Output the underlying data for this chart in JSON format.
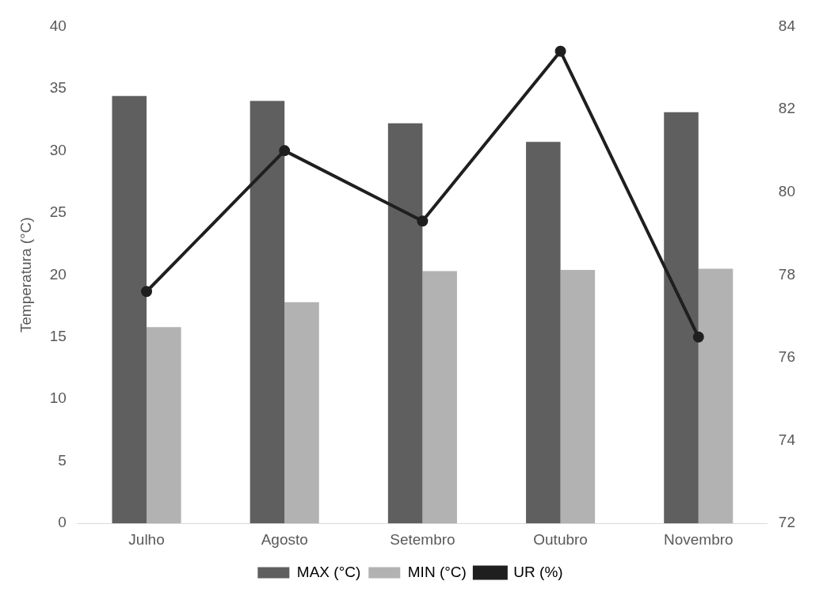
{
  "chart_data": {
    "type": "bar",
    "ylabel": "Temperatura (°C)",
    "categories": [
      "Julho",
      "Agosto",
      "Setembro",
      "Outubro",
      "Novembro"
    ],
    "series": [
      {
        "name": "MAX (°C)",
        "color": "#5f5f5f",
        "values": [
          34.4,
          34.0,
          32.2,
          30.7,
          33.1
        ]
      },
      {
        "name": "MIN (°C)",
        "color": "#b2b2b2",
        "values": [
          15.8,
          17.8,
          20.3,
          20.4,
          20.5
        ]
      },
      {
        "name": "UR (%)",
        "type": "line",
        "axis": "y2",
        "color": "#1f1f1f",
        "marker": "circle",
        "values": [
          77.6,
          81.0,
          79.3,
          83.4,
          76.5
        ]
      }
    ],
    "ylim": [
      0,
      40
    ],
    "yticks": [
      0,
      5,
      10,
      15,
      20,
      25,
      30,
      35,
      40
    ],
    "y2lim": [
      72,
      84
    ],
    "y2ticks": [
      72,
      74,
      76,
      78,
      80,
      82,
      84
    ],
    "grid": false,
    "legend": "bottom"
  }
}
